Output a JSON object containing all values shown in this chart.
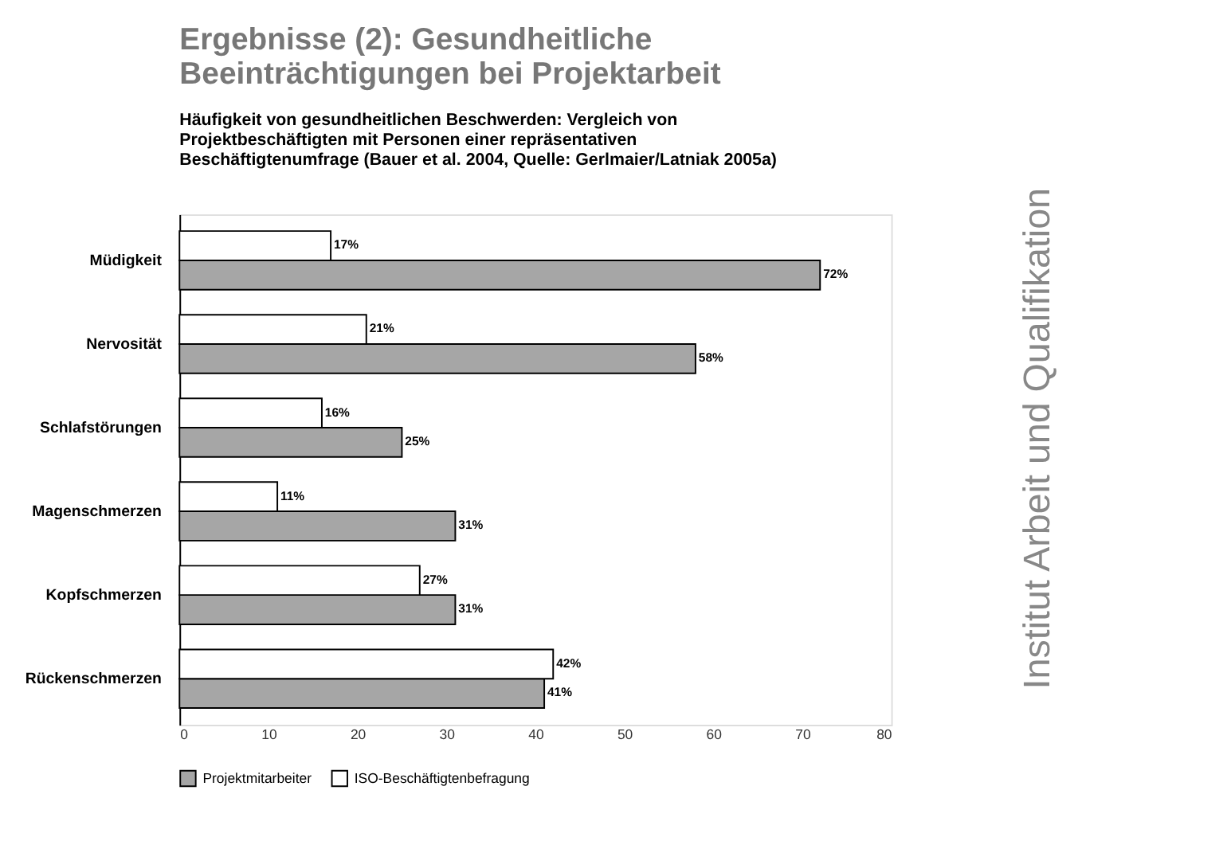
{
  "chart_data": {
    "type": "bar",
    "orientation": "horizontal",
    "title": "Ergebnisse (2): Gesundheitliche\nBeeinträchtigungen bei Projektarbeit",
    "subtitle": "Häufigkeit von gesundheitlichen Beschwerden: Vergleich von\nProjektbeschäftigten mit Personen einer repräsentativen\nBeschäftigtenumfrage (Bauer et al. 2004, Quelle: Gerlmaier/Latniak 2005a)",
    "annotations": [
      "Institut Arbeit und Qualifikation"
    ],
    "categories": [
      "Müdigkeit",
      "Nervosität",
      "Schlafstörungen",
      "Magenschmerzen",
      "Kopfschmerzen",
      "Rückenschmerzen"
    ],
    "series": [
      {
        "name": "Projektmitarbeiter",
        "color": "#a6a6a6",
        "values": [
          72,
          58,
          25,
          31,
          31,
          41
        ],
        "value_labels": [
          "72%",
          "58%",
          "25%",
          "31%",
          "31%",
          "41%"
        ]
      },
      {
        "name": "ISO-Beschäftigtenbefragung",
        "color": "#ffffff",
        "values": [
          17,
          21,
          16,
          11,
          27,
          42
        ],
        "value_labels": [
          "17%",
          "21%",
          "16%",
          "11%",
          "27%",
          "42%"
        ]
      }
    ],
    "xlim": [
      0,
      80
    ],
    "xticks": [
      0,
      10,
      20,
      30,
      40,
      50,
      60,
      70,
      80
    ],
    "grid": false,
    "legend": "bottom"
  }
}
